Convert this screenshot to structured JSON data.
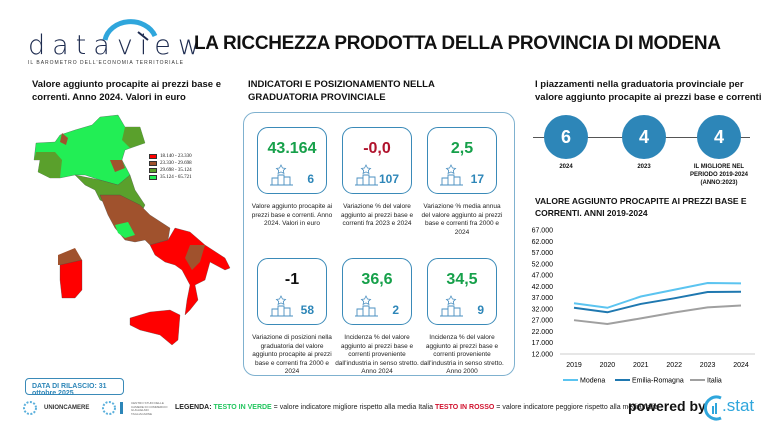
{
  "header": {
    "logo": "dataview",
    "logo_tagline": "IL BAROMETRO DELL'ECONOMIA TERRITORIALE",
    "title": "LA RICCHEZZA PRODOTTA DELLA PROVINCIA DI MODENA"
  },
  "map_section": {
    "title": "Valore aggiunto procapite ai prezzi base e correnti. Anno 2024. Valori in euro",
    "legend": [
      {
        "label": "18.140 - 23.330",
        "color": "#ff0000"
      },
      {
        "label": "23.330 - 29.698",
        "color": "#a0522d"
      },
      {
        "label": "29.698 - 35.124",
        "color": "#5aa02c"
      },
      {
        "label": "35.124 - 65.721",
        "color": "#22ee55"
      }
    ]
  },
  "indicators": {
    "title": "INDICATORI E POSIZIONAMENTO NELLA GRADUATORIA PROVINCIALE",
    "icon": "podium-icon",
    "cards": [
      {
        "value": "43.164",
        "rank": "6",
        "color": "green",
        "desc": "Valore aggiunto procapite ai prezzi base e correnti. Anno 2024. Valori in euro"
      },
      {
        "value": "-0,0",
        "rank": "107",
        "color": "red",
        "desc": "Variazione % del valore aggiunto ai prezzi base e correnti fra 2023 e 2024"
      },
      {
        "value": "2,5",
        "rank": "17",
        "color": "green",
        "desc": "Variazione % media annua del valore aggiunto ai prezzi base e correnti fra 2000 e 2024"
      },
      {
        "value": "-1",
        "rank": "58",
        "color": "black",
        "desc": "Variazione di posizioni nella graduatoria del valore aggiunto procapite ai prezzi base e correnti fra 2000 e 2024"
      },
      {
        "value": "36,6",
        "rank": "2",
        "color": "green",
        "desc": "Incidenza % del valore aggiunto ai prezzi base e correnti proveniente dall'industria in senso stretto. Anno 2024"
      },
      {
        "value": "34,5",
        "rank": "9",
        "color": "green",
        "desc": "Incidenza % del valore aggiunto ai prezzi base e correnti proveniente dall'industria in senso stretto. Anno 2000"
      }
    ]
  },
  "placements": {
    "title": "I piazzamenti nella graduatoria provinciale per valore aggiunto procapite ai prezzi base e correnti",
    "items": [
      {
        "value": "6",
        "label": "2024"
      },
      {
        "value": "4",
        "label": "2023"
      },
      {
        "value": "4",
        "label": "IL MIGLIORE NEL PERIODO 2019-2024 (ANNO:2023)"
      }
    ]
  },
  "chart_data": {
    "type": "line",
    "title": "VALORE AGGIUNTO PROCAPITE AI PREZZI BASE E CORRENTI. ANNI 2019-2024",
    "categories": [
      "2019",
      "2020",
      "2021",
      "2022",
      "2023",
      "2024"
    ],
    "ylim": [
      12000,
      67000
    ],
    "yticks": [
      "12.000",
      "17.000",
      "22.000",
      "27.000",
      "32.000",
      "37.000",
      "42.000",
      "47.000",
      "52.000",
      "57.000",
      "62.000",
      "67.000"
    ],
    "legend_position": "bottom",
    "series": [
      {
        "name": "Modena",
        "color": "#5bc4f0",
        "values": [
          34500,
          32500,
          37500,
          40500,
          43500,
          43300
        ]
      },
      {
        "name": "Emilia-Romagna",
        "color": "#1f78b0",
        "values": [
          32500,
          30500,
          34200,
          36700,
          39500,
          39600
        ]
      },
      {
        "name": "Italia",
        "color": "#a0a0a0",
        "values": [
          27000,
          25300,
          27800,
          30400,
          32700,
          33500
        ]
      }
    ]
  },
  "footer": {
    "release": "DATA DI RILASCIO: 31 ottobre 2025",
    "unioncamere": "UNIONCAMERE",
    "centro_studi": "CENTRO STUDI DELLE CAMERE DI COMMERCIO GUGLIELMO TAGLIACARNE",
    "legend_label": "LEGENDA:",
    "legend_green": "TESTO IN VERDE",
    "legend_green_desc": " = valore indicatore migliore rispetto alla media Italia ",
    "legend_red": "TESTO IN ROSSO",
    "legend_red_desc": " = valore indicatore peggiore rispetto alla media Italia",
    "powered_by": "powered by",
    "stat_logo": ".stat"
  }
}
